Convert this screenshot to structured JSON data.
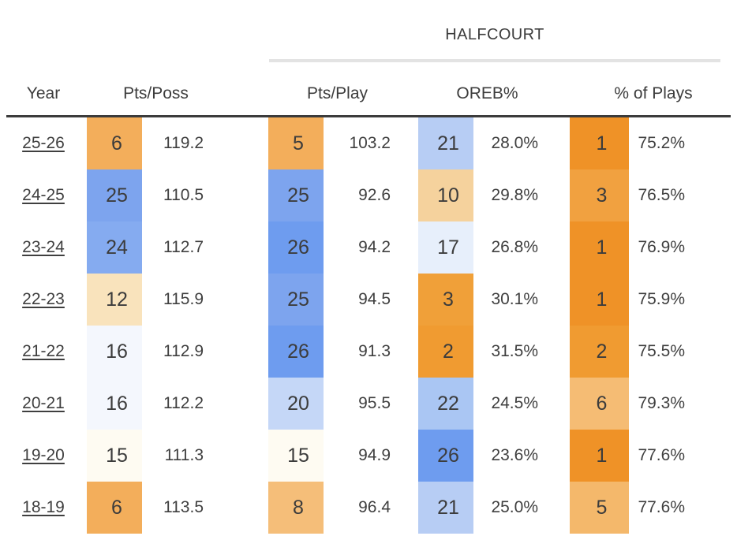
{
  "colors": {
    "text": "#3f3f3f",
    "header_rule": "#3b3b3b",
    "group_rule": "#e3e3e3",
    "good_rank_orange": "#EF9227",
    "bad_rank_blue": "#6E9CEF"
  },
  "group_header": {
    "label": "HALFCOURT"
  },
  "column_headers": {
    "year": "Year",
    "pts_poss": "Pts/Poss",
    "pts_play": "Pts/Play",
    "oreb": "OREB%",
    "plays": "% of Plays"
  },
  "rows": [
    {
      "year": "25-26",
      "pts_poss_rank": "6",
      "pts_poss_rank_bg": "#F3AE5B",
      "pts_poss_val": "119.2",
      "pts_play_rank": "5",
      "pts_play_rank_bg": "#F3AE5B",
      "pts_play_val": "103.2",
      "oreb_rank": "21",
      "oreb_rank_bg": "#B7CDF4",
      "oreb_val": "28.0%",
      "plays_rank": "1",
      "plays_rank_bg": "#EF9227",
      "plays_val": "75.2%"
    },
    {
      "year": "24-25",
      "pts_poss_rank": "25",
      "pts_poss_rank_bg": "#7DA4EE",
      "pts_poss_val": "110.5",
      "pts_play_rank": "25",
      "pts_play_rank_bg": "#7DA4EE",
      "pts_play_val": "92.6",
      "oreb_rank": "10",
      "oreb_rank_bg": "#F5D29D",
      "oreb_val": "29.8%",
      "plays_rank": "3",
      "plays_rank_bg": "#F1A140",
      "plays_val": "76.5%"
    },
    {
      "year": "23-24",
      "pts_poss_rank": "24",
      "pts_poss_rank_bg": "#85ABF0",
      "pts_poss_val": "112.7",
      "pts_play_rank": "26",
      "pts_play_rank_bg": "#6E9CEF",
      "pts_play_val": "94.2",
      "oreb_rank": "17",
      "oreb_rank_bg": "#E7EFFB",
      "oreb_val": "26.8%",
      "plays_rank": "1",
      "plays_rank_bg": "#EF9227",
      "plays_val": "76.9%"
    },
    {
      "year": "22-23",
      "pts_poss_rank": "12",
      "pts_poss_rank_bg": "#F9E3BC",
      "pts_poss_val": "115.9",
      "pts_play_rank": "25",
      "pts_play_rank_bg": "#7DA4EE",
      "pts_play_val": "94.5",
      "oreb_rank": "3",
      "oreb_rank_bg": "#F0A039",
      "oreb_val": "30.1%",
      "plays_rank": "1",
      "plays_rank_bg": "#EF9227",
      "plays_val": "75.9%"
    },
    {
      "year": "21-22",
      "pts_poss_rank": "16",
      "pts_poss_rank_bg": "#F4F7FD",
      "pts_poss_val": "112.9",
      "pts_play_rank": "26",
      "pts_play_rank_bg": "#6E9CEF",
      "pts_play_val": "91.3",
      "oreb_rank": "2",
      "oreb_rank_bg": "#F09B31",
      "oreb_val": "31.5%",
      "plays_rank": "2",
      "plays_rank_bg": "#F09B31",
      "plays_val": "75.5%"
    },
    {
      "year": "20-21",
      "pts_poss_rank": "16",
      "pts_poss_rank_bg": "#F4F7FD",
      "pts_poss_val": "112.2",
      "pts_play_rank": "20",
      "pts_play_rank_bg": "#C5D7F7",
      "pts_play_val": "95.5",
      "oreb_rank": "22",
      "oreb_rank_bg": "#AAC6F3",
      "oreb_val": "24.5%",
      "plays_rank": "6",
      "plays_rank_bg": "#F5BC74",
      "plays_val": "79.3%"
    },
    {
      "year": "19-20",
      "pts_poss_rank": "15",
      "pts_poss_rank_bg": "#FEFBF2",
      "pts_poss_val": "111.3",
      "pts_play_rank": "15",
      "pts_play_rank_bg": "#FEFBF2",
      "pts_play_val": "94.9",
      "oreb_rank": "26",
      "oreb_rank_bg": "#6E9CEF",
      "oreb_val": "23.6%",
      "plays_rank": "1",
      "plays_rank_bg": "#EF9227",
      "plays_val": "77.6%"
    },
    {
      "year": "18-19",
      "pts_poss_rank": "6",
      "pts_poss_rank_bg": "#F3AE5B",
      "pts_poss_val": "113.5",
      "pts_play_rank": "8",
      "pts_play_rank_bg": "#F5BE79",
      "pts_play_val": "96.4",
      "oreb_rank": "21",
      "oreb_rank_bg": "#B7CDF4",
      "oreb_val": "25.0%",
      "plays_rank": "5",
      "plays_rank_bg": "#F4B86B",
      "plays_val": "77.6%"
    }
  ],
  "chart_data": {
    "type": "table",
    "title": "Team offense by season with league ranks",
    "group_header": {
      "label": "HALFCOURT",
      "spans": [
        "Pts/Play",
        "OREB%",
        "% of Plays"
      ]
    },
    "columns": [
      "Year",
      "Pts/Poss Rank",
      "Pts/Poss",
      "Pts/Play Rank",
      "Pts/Play",
      "OREB% Rank",
      "OREB%",
      "% of Plays Rank",
      "% of Plays"
    ],
    "rows": [
      [
        "25-26",
        6,
        119.2,
        5,
        103.2,
        21,
        "28.0%",
        1,
        "75.2%"
      ],
      [
        "24-25",
        25,
        110.5,
        25,
        92.6,
        10,
        "29.8%",
        3,
        "76.5%"
      ],
      [
        "23-24",
        24,
        112.7,
        26,
        94.2,
        17,
        "26.8%",
        1,
        "76.9%"
      ],
      [
        "22-23",
        12,
        115.9,
        25,
        94.5,
        3,
        "30.1%",
        1,
        "75.9%"
      ],
      [
        "21-22",
        16,
        112.9,
        26,
        91.3,
        2,
        "31.5%",
        2,
        "75.5%"
      ],
      [
        "20-21",
        16,
        112.2,
        20,
        95.5,
        22,
        "24.5%",
        6,
        "79.3%"
      ],
      [
        "19-20",
        15,
        111.3,
        15,
        94.9,
        26,
        "23.6%",
        1,
        "77.6%"
      ],
      [
        "18-19",
        6,
        113.5,
        8,
        96.4,
        21,
        "25.0%",
        5,
        "77.6%"
      ]
    ],
    "layout_hints": {
      "rank_cell_shading": "orange = good (low) rank, blue = bad (high) rank, white = league average",
      "year_cells_are_links": true
    }
  }
}
